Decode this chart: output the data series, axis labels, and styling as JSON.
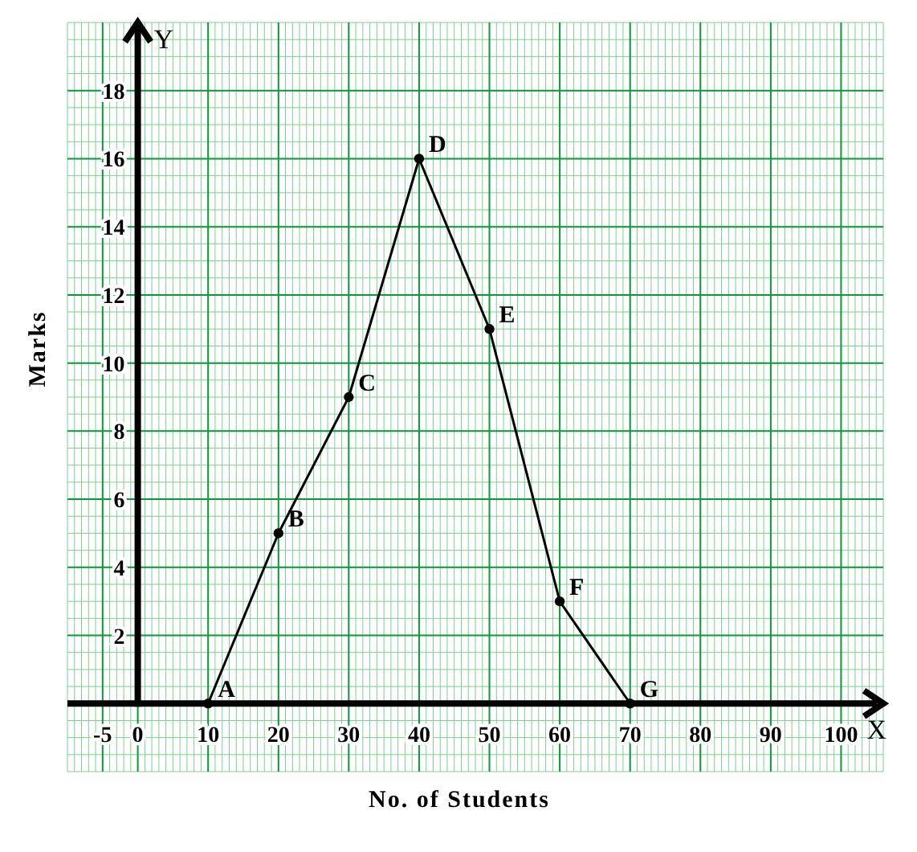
{
  "chart_data": {
    "type": "line",
    "xlabel": "No. of Students",
    "ylabel": "Marks",
    "x": [
      10,
      20,
      30,
      40,
      50,
      60,
      70
    ],
    "series": [
      {
        "color": "#000000",
        "values": [
          0,
          5,
          9,
          16,
          11,
          3,
          0
        ]
      }
    ],
    "marker": "circle",
    "grid": true,
    "xlim": [
      -10,
      106
    ],
    "ylim": [
      -2,
      20
    ],
    "xticks": [
      -5,
      0,
      10,
      20,
      30,
      40,
      50,
      60,
      70,
      80,
      90,
      100
    ],
    "yticks": [
      2,
      4,
      6,
      8,
      10,
      12,
      14,
      16,
      18
    ],
    "annotations": [
      {
        "text": "A",
        "x": 10,
        "y": 0
      },
      {
        "text": "B",
        "x": 20,
        "y": 5
      },
      {
        "text": "C",
        "x": 30,
        "y": 9
      },
      {
        "text": "D",
        "x": 40,
        "y": 16
      },
      {
        "text": "E",
        "x": 50,
        "y": 11
      },
      {
        "text": "F",
        "x": 60,
        "y": 3
      },
      {
        "text": "G",
        "x": 70,
        "y": 0
      },
      "X",
      "Y"
    ]
  }
}
